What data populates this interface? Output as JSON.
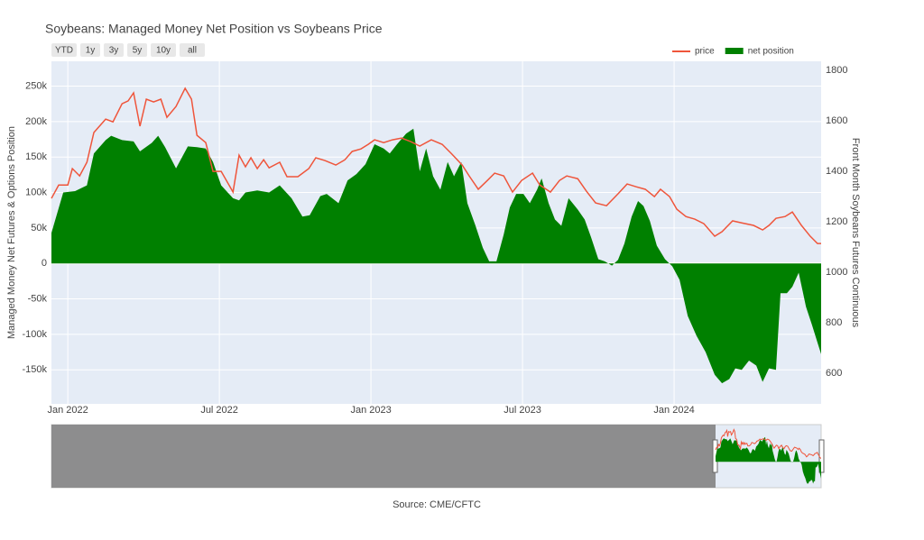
{
  "chart_data": {
    "type": "line-area",
    "title": "Soybeans: Managed Money Net Position vs Soybeans Price",
    "range_buttons": [
      "YTD",
      "1y",
      "3y",
      "5y",
      "10y",
      "all"
    ],
    "y_label": "Managed Money Net Futures & Options Position",
    "y2_label": "Front Month Soybeans Futures Continuous",
    "source": "Source: CME/CFTC",
    "xlim": [
      2021.946,
      2024.485
    ],
    "xticks": [
      {
        "value": 2022.0,
        "label": "Jan 2022"
      },
      {
        "value": 2022.5,
        "label": "Jul 2022"
      },
      {
        "value": 2023.0,
        "label": "Jan 2023"
      },
      {
        "value": 2023.5,
        "label": "Jul 2023"
      },
      {
        "value": 2024.0,
        "label": "Jan 2024"
      }
    ],
    "ylim": [
      -198000,
      285000
    ],
    "yticks": [
      {
        "value": -150000,
        "label": "-150k"
      },
      {
        "value": -100000,
        "label": "-100k"
      },
      {
        "value": -50000,
        "label": "-50k"
      },
      0,
      {
        "value": 50000,
        "label": "50k"
      },
      {
        "value": 100000,
        "label": "100k"
      },
      {
        "value": 150000,
        "label": "150k"
      },
      {
        "value": 200000,
        "label": "200k"
      },
      {
        "value": 250000,
        "label": "250k"
      }
    ],
    "y2lim": [
      479,
      1836
    ],
    "y2ticks": [
      600,
      800,
      1000,
      1200,
      1400,
      1600,
      1800
    ],
    "grid": true,
    "legend": "top-right",
    "series": [
      {
        "name": "price",
        "color": "#ef553b",
        "axis": "y2",
        "kind": "line",
        "x": [
          2021.946,
          2021.97,
          2022.0,
          2022.015,
          2022.039,
          2022.063,
          2022.086,
          2022.125,
          2022.149,
          2022.179,
          2022.199,
          2022.217,
          2022.238,
          2022.259,
          2022.283,
          2022.307,
          2022.327,
          2022.357,
          2022.387,
          2022.408,
          2022.426,
          2022.455,
          2022.479,
          2022.506,
          2022.545,
          2022.565,
          2022.586,
          2022.604,
          2022.625,
          2022.646,
          2022.664,
          2022.699,
          2022.723,
          2022.759,
          2022.795,
          2022.818,
          2022.848,
          2022.884,
          2022.914,
          2022.938,
          2022.967,
          2022.991,
          2023.012,
          2023.042,
          2023.071,
          2023.101,
          2023.131,
          2023.161,
          2023.199,
          2023.235,
          2023.265,
          2023.301,
          2023.324,
          2023.354,
          2023.384,
          2023.408,
          2023.438,
          2023.467,
          2023.497,
          2023.533,
          2023.557,
          2023.592,
          2023.622,
          2023.646,
          2023.682,
          2023.711,
          2023.741,
          2023.777,
          2023.815,
          2023.845,
          2023.875,
          2023.905,
          2023.935,
          2023.955,
          2023.985,
          2024.009,
          2024.039,
          2024.068,
          2024.098,
          2024.134,
          2024.158,
          2024.193,
          2024.223,
          2024.262,
          2024.292,
          2024.313,
          2024.336,
          2024.366,
          2024.39,
          2024.42,
          2024.449,
          2024.473,
          2024.485
        ],
        "values": [
          1293,
          1346,
          1346,
          1411,
          1382,
          1436,
          1554,
          1607,
          1596,
          1668,
          1679,
          1711,
          1579,
          1686,
          1675,
          1686,
          1614,
          1657,
          1729,
          1686,
          1543,
          1514,
          1400,
          1400,
          1318,
          1464,
          1418,
          1454,
          1411,
          1446,
          1414,
          1436,
          1379,
          1379,
          1411,
          1454,
          1443,
          1425,
          1446,
          1479,
          1489,
          1507,
          1525,
          1514,
          1525,
          1532,
          1518,
          1500,
          1525,
          1507,
          1471,
          1425,
          1382,
          1329,
          1364,
          1393,
          1382,
          1318,
          1364,
          1393,
          1346,
          1318,
          1364,
          1382,
          1371,
          1321,
          1275,
          1264,
          1311,
          1350,
          1339,
          1329,
          1300,
          1329,
          1300,
          1250,
          1221,
          1211,
          1193,
          1143,
          1161,
          1204,
          1196,
          1186,
          1168,
          1186,
          1214,
          1221,
          1239,
          1186,
          1143,
          1114,
          1114
        ]
      },
      {
        "name": "net position",
        "color": "#008000",
        "axis": "y",
        "kind": "area",
        "x": [
          2021.946,
          2021.985,
          2022.024,
          2022.063,
          2022.086,
          2022.125,
          2022.143,
          2022.179,
          2022.217,
          2022.238,
          2022.277,
          2022.298,
          2022.321,
          2022.357,
          2022.396,
          2022.426,
          2022.455,
          2022.479,
          2022.506,
          2022.545,
          2022.565,
          2022.586,
          2022.625,
          2022.664,
          2022.699,
          2022.738,
          2022.774,
          2022.798,
          2022.833,
          2022.854,
          2022.893,
          2022.923,
          2022.952,
          2022.982,
          2023.012,
          2023.042,
          2023.062,
          2023.086,
          2023.116,
          2023.14,
          2023.161,
          2023.182,
          2023.205,
          2023.229,
          2023.253,
          2023.274,
          2023.298,
          2023.318,
          2023.345,
          2023.369,
          2023.39,
          2023.414,
          2023.438,
          2023.458,
          2023.479,
          2023.503,
          2023.524,
          2023.548,
          2023.563,
          2023.586,
          2023.607,
          2023.628,
          2023.652,
          2023.682,
          2023.705,
          2023.726,
          2023.75,
          2023.771,
          2023.795,
          2023.815,
          2023.836,
          2023.86,
          2023.881,
          2023.899,
          2023.92,
          2023.943,
          2023.97,
          2023.994,
          2024.018,
          2024.045,
          2024.074,
          2024.104,
          2024.134,
          2024.158,
          2024.182,
          2024.202,
          2024.223,
          2024.247,
          2024.271,
          2024.292,
          2024.313,
          2024.336,
          2024.351,
          2024.372,
          2024.39,
          2024.411,
          2024.435,
          2024.455,
          2024.485
        ],
        "values": [
          43000,
          100000,
          102000,
          110000,
          155000,
          174000,
          180000,
          174000,
          172000,
          158000,
          170000,
          180000,
          164000,
          134000,
          165000,
          164000,
          162000,
          143000,
          110000,
          92000,
          89000,
          100000,
          103000,
          100000,
          110000,
          92000,
          66000,
          68000,
          95000,
          98000,
          85000,
          117000,
          126000,
          140000,
          168000,
          162000,
          155000,
          168000,
          183000,
          190000,
          130000,
          162000,
          123000,
          104000,
          143000,
          123000,
          143000,
          85000,
          53000,
          22000,
          3000,
          3000,
          41000,
          79000,
          98000,
          98000,
          85000,
          104000,
          120000,
          85000,
          62000,
          53000,
          92000,
          76000,
          62000,
          37000,
          6000,
          3000,
          -3000,
          5000,
          28000,
          66000,
          88000,
          81000,
          60000,
          25000,
          6000,
          -4000,
          -23000,
          -74000,
          -102000,
          -125000,
          -157000,
          -169000,
          -163000,
          -148000,
          -150000,
          -137000,
          -144000,
          -167000,
          -148000,
          -150000,
          -42000,
          -42000,
          -33000,
          -13000,
          -61000,
          -87000,
          -128000
        ]
      }
    ]
  }
}
